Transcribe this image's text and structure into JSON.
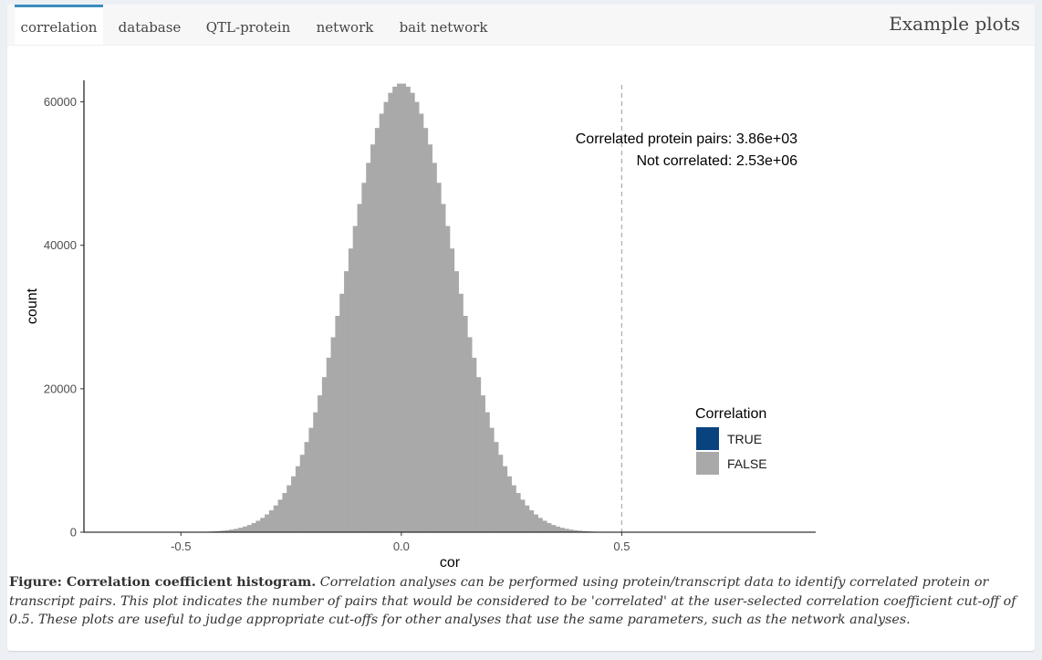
{
  "tabs": [
    {
      "label": "correlation",
      "active": true
    },
    {
      "label": "database",
      "active": false
    },
    {
      "label": "QTL-protein",
      "active": false
    },
    {
      "label": "network",
      "active": false
    },
    {
      "label": "bait network",
      "active": false
    }
  ],
  "panel_title": "Example plots",
  "caption": {
    "bold": "Figure: Correlation coefficient histogram.",
    "text": "Correlation analyses can be performed using protein/transcript data to identify correlated protein or transcript pairs. This plot indicates the number of pairs that would be considered to be 'correlated' at the user-selected correlation coefficient cut-off of 0.5. These plots are useful to judge appropriate cut-offs for other analyses that use the same parameters, such as the network analyses."
  },
  "colors": {
    "accent": "#3c8dbc",
    "true_fill": "#08437f",
    "false_fill": "#a9a9a9"
  },
  "chart_data": {
    "type": "bar",
    "xlabel": "cor",
    "ylabel": "count",
    "xlim": [
      -0.72,
      0.94
    ],
    "ylim": [
      0,
      63000
    ],
    "xticks": [
      -0.5,
      0.0,
      0.5
    ],
    "xtick_labels": [
      "-0.5",
      "0.0",
      "0.5"
    ],
    "yticks": [
      0,
      20000,
      40000,
      60000
    ],
    "ytick_labels": [
      "0",
      "20000",
      "40000",
      "60000"
    ],
    "distribution": {
      "mean": 0.0,
      "sd": 0.12,
      "peak_count": 62600,
      "bin_width": 0.01,
      "x_min": -0.7,
      "x_max": 0.7
    },
    "cutoff": 0.5,
    "cutoff_line": "dashed",
    "grid": false,
    "annotations": [
      "Correlated protein pairs: 3.86e+03",
      "Not correlated: 2.53e+06"
    ],
    "legend": {
      "title": "Correlation",
      "position": "right",
      "entries": [
        {
          "label": "TRUE",
          "color": "#08437f"
        },
        {
          "label": "FALSE",
          "color": "#a9a9a9"
        }
      ]
    },
    "series": [
      {
        "name": "TRUE",
        "condition": "cor >= 0.5"
      },
      {
        "name": "FALSE",
        "condition": "cor < 0.5"
      }
    ]
  }
}
